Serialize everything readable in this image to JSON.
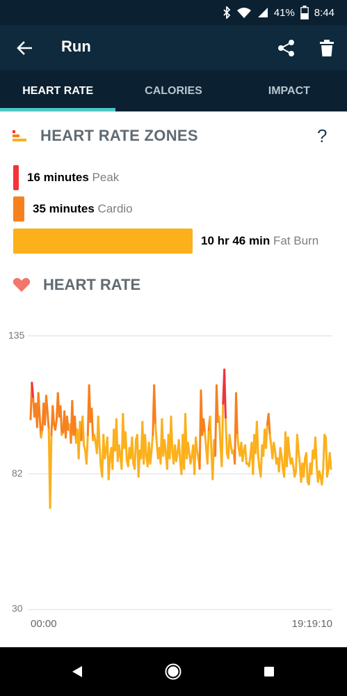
{
  "status_bar": {
    "battery": "41%",
    "time": "8:44"
  },
  "app_bar": {
    "title": "Run",
    "icons": [
      "back-arrow-icon",
      "share-icon",
      "trash-icon"
    ]
  },
  "tabs": [
    {
      "label": "HEART RATE",
      "active": true
    },
    {
      "label": "CALORIES",
      "active": false
    },
    {
      "label": "IMPACT",
      "active": false
    }
  ],
  "zones": {
    "title": "HEART RATE ZONES",
    "help": "?",
    "items": [
      {
        "value": "16 minutes",
        "label": "Peak",
        "color": "#f2333a"
      },
      {
        "value": "35 minutes",
        "label": "Cardio",
        "color": "#f7801f"
      },
      {
        "value": "10 hr 46 min",
        "label": "Fat Burn",
        "color": "#fbb01c"
      }
    ]
  },
  "heart_rate": {
    "title": "HEART RATE"
  },
  "chart_data": {
    "type": "line",
    "yticks": [
      "135",
      "82",
      "30"
    ],
    "ylim": [
      30,
      135
    ],
    "xticks": [
      "00:00",
      "19:19:10"
    ],
    "grid": true,
    "series": [
      {
        "values": [
          103,
          117,
          111,
          104,
          109,
          100,
          113,
          104,
          96,
          99,
          109,
          101,
          112,
          106,
          99,
          69,
          97,
          108,
          101,
          99,
          103,
          113,
          104,
          108,
          97,
          98,
          106,
          96,
          104,
          99,
          101,
          94,
          110,
          97,
          104,
          94,
          99,
          88,
          102,
          95,
          104,
          93,
          91,
          86,
          97,
          116,
          102,
          107,
          95,
          97,
          94,
          90,
          104,
          93,
          85,
          81,
          97,
          88,
          91,
          96,
          80,
          88,
          92,
          84,
          99,
          91,
          103,
          87,
          93,
          89,
          84,
          105,
          92,
          98,
          87,
          85,
          92,
          88,
          96,
          86,
          84,
          95,
          97,
          81,
          91,
          88,
          102,
          86,
          97,
          89,
          85,
          94,
          86,
          91,
          97,
          116,
          101,
          94,
          88,
          92,
          86,
          103,
          89,
          95,
          90,
          84,
          97,
          88,
          104,
          91,
          86,
          93,
          87,
          90,
          95,
          87,
          82,
          97,
          84,
          105,
          88,
          94,
          90,
          86,
          89,
          93,
          82,
          96,
          91,
          88,
          84,
          114,
          97,
          103,
          98,
          92,
          86,
          99,
          104,
          91,
          80,
          95,
          89,
          116,
          102,
          104,
          93,
          85,
          109,
          122,
          103,
          90,
          88,
          97,
          93,
          90,
          91,
          86,
          113,
          97,
          92,
          89,
          94,
          87,
          91,
          93,
          86,
          86,
          85,
          89,
          94,
          82,
          97,
          90,
          102,
          89,
          84,
          81,
          93,
          89,
          99,
          92,
          101,
          105,
          97,
          93,
          88,
          94,
          91,
          86,
          88,
          83,
          92,
          89,
          84,
          81,
          98,
          85,
          96,
          90,
          86,
          88,
          85,
          81,
          83,
          97,
          91,
          86,
          79,
          86,
          81,
          88,
          90,
          79,
          78,
          86,
          82,
          91,
          88,
          96,
          85,
          79,
          83,
          81,
          78,
          84,
          97,
          96,
          81,
          84,
          90,
          84
        ]
      }
    ],
    "colors": {
      "low": "#fbb01c",
      "mid": "#f7801f",
      "high": "#f2333a"
    }
  },
  "nav_bar": {
    "icons": [
      "back-triangle-icon",
      "home-circle-icon",
      "recents-square-icon"
    ]
  }
}
